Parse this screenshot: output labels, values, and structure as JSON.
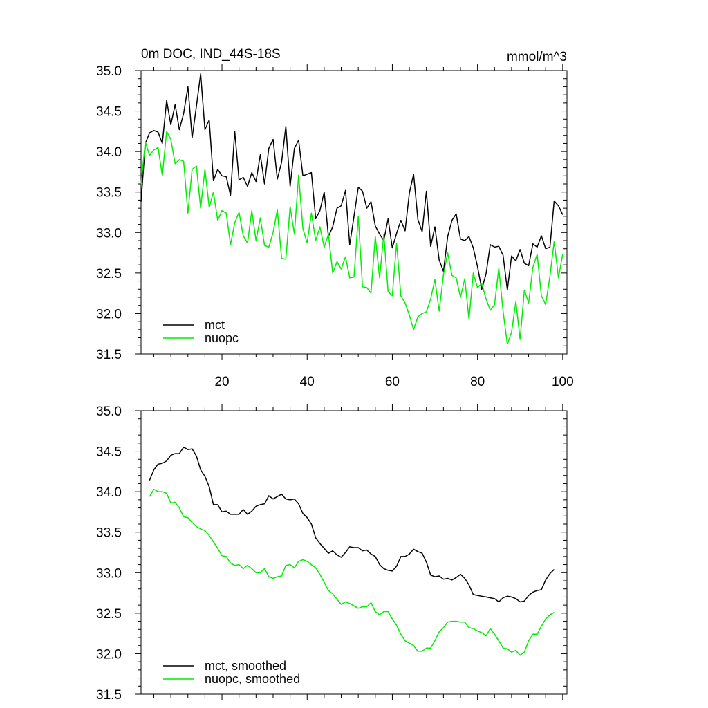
{
  "chart_data": [
    {
      "type": "line",
      "title": "0m DOC, IND_44S-18S",
      "units": "mmol/m^3",
      "xlabel": "",
      "ylabel": "",
      "xlim": [
        1,
        101
      ],
      "ylim": [
        31.5,
        35.0
      ],
      "xticks": [
        "20",
        "40",
        "60",
        "80",
        "100"
      ],
      "yticks": [
        "31.5",
        "32.0",
        "32.5",
        "33.0",
        "33.5",
        "34.0",
        "34.5",
        "35.0"
      ],
      "legend": "bottom-left",
      "colors": {
        "mct": "#000000",
        "nuopc": "#00ee00"
      },
      "x_start": 1,
      "series": [
        {
          "name": "mct",
          "values": [
            33.38,
            34.1,
            34.23,
            34.26,
            34.24,
            34.1,
            34.63,
            34.33,
            34.58,
            34.27,
            34.47,
            34.8,
            34.17,
            34.56,
            34.96,
            34.27,
            34.39,
            33.64,
            33.78,
            33.7,
            33.69,
            33.46,
            34.25,
            33.65,
            33.68,
            33.57,
            33.74,
            33.63,
            33.96,
            33.6,
            34.04,
            34.15,
            33.66,
            33.87,
            34.31,
            33.57,
            34.04,
            34.14,
            33.7,
            33.72,
            33.74,
            33.17,
            33.27,
            33.5,
            32.95,
            33.07,
            33.3,
            33.33,
            33.52,
            32.85,
            33.2,
            33.56,
            33.51,
            33.3,
            33.38,
            33.08,
            32.98,
            32.9,
            33.17,
            32.81,
            32.99,
            33.15,
            33.02,
            33.49,
            33.72,
            33.16,
            33.01,
            33.51,
            32.83,
            33.07,
            32.66,
            32.52,
            32.95,
            33.15,
            33.23,
            32.92,
            32.9,
            32.95,
            32.81,
            32.58,
            32.3,
            32.49,
            32.85,
            32.82,
            32.83,
            32.72,
            32.29,
            32.71,
            32.65,
            32.79,
            32.62,
            32.59,
            32.86,
            32.82,
            32.96,
            32.8,
            32.82,
            33.39,
            33.33,
            33.22
          ]
        },
        {
          "name": "nuopc",
          "values": [
            33.6,
            34.12,
            33.95,
            34.02,
            34.05,
            33.7,
            34.25,
            34.15,
            33.85,
            33.9,
            33.88,
            33.24,
            33.78,
            33.82,
            33.3,
            33.78,
            33.31,
            33.5,
            33.15,
            33.27,
            33.24,
            32.85,
            33.12,
            33.25,
            32.96,
            32.87,
            33.27,
            32.9,
            33.18,
            32.84,
            32.82,
            33.0,
            33.28,
            32.68,
            32.67,
            33.32,
            32.98,
            33.71,
            33.05,
            32.87,
            33.24,
            32.9,
            33.07,
            32.82,
            32.98,
            32.5,
            32.64,
            32.55,
            32.7,
            32.44,
            32.45,
            33.2,
            32.33,
            32.32,
            32.25,
            32.95,
            32.44,
            32.98,
            32.27,
            32.22,
            32.87,
            32.22,
            32.13,
            31.98,
            31.8,
            31.96,
            32.0,
            32.02,
            32.18,
            32.42,
            32.03,
            32.48,
            32.75,
            32.47,
            32.44,
            32.2,
            32.43,
            31.93,
            32.5,
            32.32,
            32.37,
            32.18,
            32.04,
            32.11,
            32.56,
            32.03,
            31.62,
            31.77,
            32.15,
            31.68,
            32.29,
            32.13,
            32.57,
            32.73,
            32.22,
            32.11,
            32.46,
            32.89,
            32.44,
            32.73
          ]
        }
      ]
    },
    {
      "type": "line",
      "title": "",
      "xlabel": "",
      "ylabel": "",
      "xlim": [
        1,
        101
      ],
      "ylim": [
        31.5,
        35.0
      ],
      "yticks": [
        "31.5",
        "32.0",
        "32.5",
        "33.0",
        "33.5",
        "34.0",
        "34.5",
        "35.0"
      ],
      "legend": "bottom-left",
      "colors": {
        "mct": "#000000",
        "nuopc": "#00ee00"
      },
      "x_start": 3,
      "series": [
        {
          "name": "mct, smoothed",
          "values": [
            34.14,
            34.27,
            34.34,
            34.35,
            34.38,
            34.45,
            34.47,
            34.47,
            34.55,
            34.52,
            34.53,
            34.44,
            34.27,
            34.19,
            34.06,
            33.84,
            33.84,
            33.75,
            33.76,
            33.72,
            33.72,
            33.72,
            33.78,
            33.72,
            33.76,
            33.82,
            33.84,
            33.85,
            33.95,
            33.91,
            33.94,
            33.97,
            33.91,
            33.9,
            33.91,
            33.85,
            33.73,
            33.68,
            33.6,
            33.43,
            33.36,
            33.3,
            33.24,
            33.27,
            33.22,
            33.19,
            33.25,
            33.32,
            33.31,
            33.31,
            33.27,
            33.28,
            33.23,
            33.2,
            33.1,
            33.05,
            33.03,
            33.02,
            33.08,
            33.2,
            33.2,
            33.23,
            33.29,
            33.26,
            33.24,
            33.13,
            32.97,
            32.95,
            32.96,
            32.92,
            32.93,
            32.91,
            32.94,
            32.98,
            32.93,
            32.85,
            32.73,
            32.72,
            32.71,
            32.7,
            32.69,
            32.68,
            32.64,
            32.69,
            32.71,
            32.7,
            32.68,
            32.64,
            32.65,
            32.72,
            32.76,
            32.78,
            32.79,
            32.91,
            32.99,
            33.04
          ]
        },
        {
          "name": "nuopc, smoothed",
          "values": [
            33.94,
            34.03,
            34.0,
            34.0,
            33.98,
            33.86,
            33.87,
            33.8,
            33.69,
            33.68,
            33.62,
            33.57,
            33.54,
            33.52,
            33.46,
            33.38,
            33.3,
            33.21,
            33.2,
            33.12,
            33.09,
            33.1,
            33.05,
            33.09,
            33.05,
            33.0,
            33.0,
            33.05,
            32.95,
            32.93,
            32.95,
            32.96,
            33.09,
            33.1,
            33.06,
            33.14,
            33.16,
            33.14,
            33.1,
            33.06,
            32.98,
            32.88,
            32.78,
            32.74,
            32.67,
            32.61,
            32.64,
            32.62,
            32.59,
            32.56,
            32.58,
            32.58,
            32.63,
            32.52,
            32.48,
            32.52,
            32.52,
            32.43,
            32.35,
            32.24,
            32.16,
            32.13,
            32.1,
            32.03,
            32.03,
            32.07,
            32.07,
            32.16,
            32.27,
            32.32,
            32.39,
            32.4,
            32.4,
            32.39,
            32.39,
            32.32,
            32.31,
            32.28,
            32.26,
            32.22,
            32.31,
            32.24,
            32.16,
            32.07,
            32.06,
            32.02,
            32.04,
            31.98,
            32.02,
            32.16,
            32.24,
            32.24,
            32.34,
            32.43,
            32.48,
            32.51
          ]
        }
      ]
    }
  ]
}
